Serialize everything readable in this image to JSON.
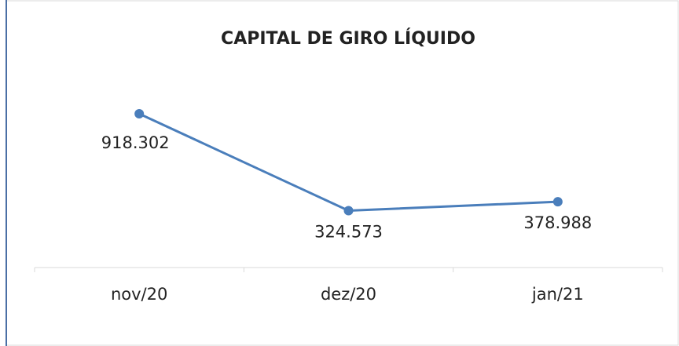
{
  "chart_data": {
    "type": "line",
    "title": "CAPITAL DE GIRO LÍQUIDO",
    "categories": [
      "nov/20",
      "dez/20",
      "jan/21"
    ],
    "values": [
      918302,
      324573,
      378988
    ],
    "value_labels": [
      "918.302",
      "324.573",
      "378.988"
    ],
    "color": "#4a7ebb",
    "ylim": [
      0,
      1000000
    ]
  }
}
